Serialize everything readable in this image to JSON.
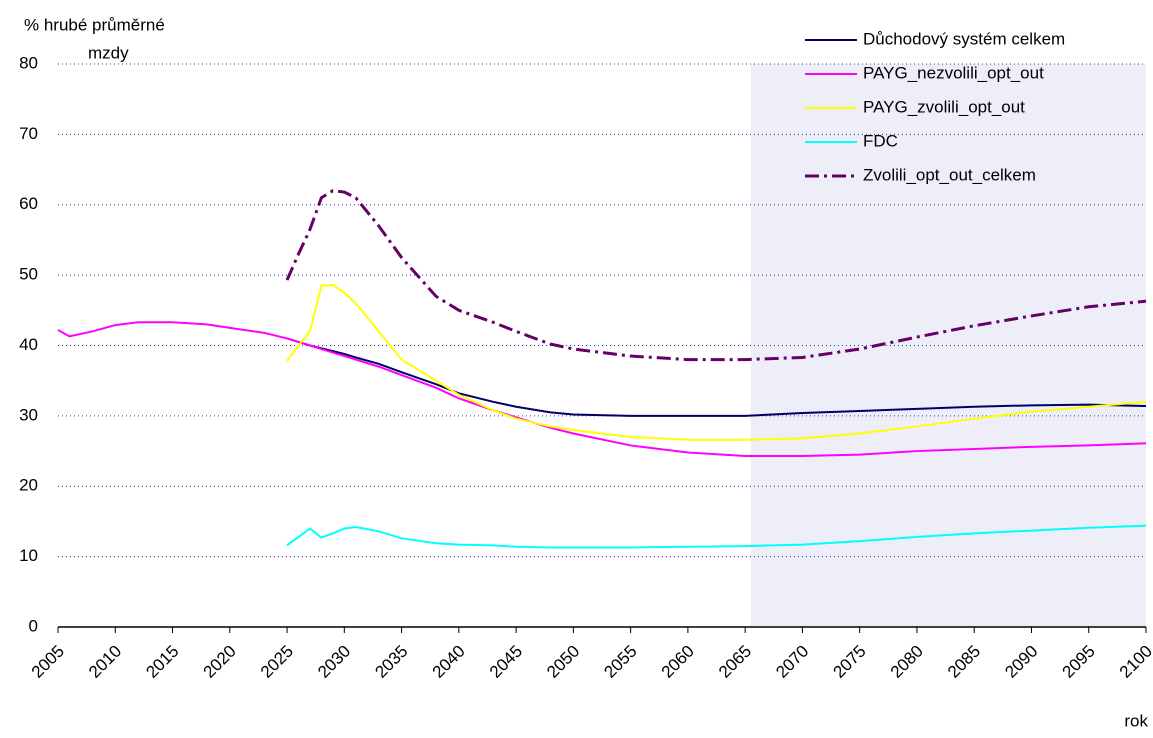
{
  "chart_data": {
    "type": "line",
    "ylabel": [
      "% hrubé průměrné",
      "mzdy"
    ],
    "xlabel": "rok",
    "x": [
      2005,
      2006,
      2008,
      2010,
      2012,
      2015,
      2018,
      2020,
      2023,
      2025,
      2026,
      2027,
      2028,
      2029,
      2030,
      2031,
      2033,
      2035,
      2038,
      2040,
      2043,
      2045,
      2048,
      2050,
      2055,
      2060,
      2065,
      2070,
      2075,
      2080,
      2085,
      2090,
      2095,
      2100
    ],
    "series": [
      {
        "name": "Důchodový systém celkem",
        "color": "#000066",
        "dash": "solid",
        "values": [
          null,
          null,
          null,
          null,
          null,
          null,
          null,
          null,
          null,
          41,
          40.5,
          40,
          39.6,
          39.2,
          38.8,
          38.3,
          37.4,
          36.2,
          34.5,
          33.2,
          32,
          31.3,
          30.5,
          30.2,
          30,
          30,
          30,
          30.4,
          30.7,
          31,
          31.3,
          31.5,
          31.6,
          31.4
        ]
      },
      {
        "name": "PAYG_nezvolili_opt_out",
        "color": "#ff00ff",
        "dash": "solid",
        "values": [
          42.2,
          41.3,
          42,
          42.9,
          43.3,
          43.3,
          43,
          42.5,
          41.8,
          41,
          40.5,
          40,
          39.5,
          39,
          38.5,
          38,
          37,
          35.8,
          34,
          32.5,
          30.8,
          29.8,
          28.3,
          27.5,
          25.8,
          24.8,
          24.3,
          24.3,
          24.5,
          25,
          25.3,
          25.6,
          25.8,
          26.1
        ]
      },
      {
        "name": "PAYG_zvolili_opt_out",
        "color": "#ffff00",
        "dash": "solid",
        "values": [
          null,
          null,
          null,
          null,
          null,
          null,
          null,
          null,
          null,
          37.8,
          40,
          42,
          48.5,
          48.6,
          47.5,
          46,
          42,
          38,
          35,
          33,
          30.8,
          29.6,
          28.5,
          28,
          27,
          26.6,
          26.6,
          26.8,
          27.5,
          28.5,
          29.6,
          30.6,
          31.3,
          32
        ]
      },
      {
        "name": "FDC",
        "color": "#00ffff",
        "dash": "solid",
        "values": [
          null,
          null,
          null,
          null,
          null,
          null,
          null,
          null,
          null,
          11.6,
          12.8,
          14,
          12.7,
          13.3,
          14,
          14.2,
          13.6,
          12.6,
          11.9,
          11.7,
          11.6,
          11.4,
          11.3,
          11.3,
          11.3,
          11.4,
          11.5,
          11.7,
          12.2,
          12.8,
          13.3,
          13.7,
          14.1,
          14.4
        ]
      },
      {
        "name": "Zvolili_opt_out_celkem",
        "color": "#660066",
        "dash": "dashdot",
        "values": [
          null,
          null,
          null,
          null,
          null,
          null,
          null,
          null,
          null,
          49.3,
          53,
          56.5,
          61,
          62,
          61.8,
          61,
          57,
          52.5,
          47,
          45,
          43.3,
          42,
          40.2,
          39.5,
          38.5,
          38,
          38,
          38.3,
          39.5,
          41.2,
          42.8,
          44.2,
          45.5,
          46.3
        ]
      }
    ],
    "xlim": [
      2005,
      2100
    ],
    "xticks": [
      2005,
      2010,
      2015,
      2020,
      2025,
      2030,
      2035,
      2040,
      2045,
      2050,
      2055,
      2060,
      2065,
      2070,
      2075,
      2080,
      2085,
      2090,
      2095,
      2100
    ],
    "ylim": [
      0,
      80
    ],
    "yticks": [
      0,
      10,
      20,
      30,
      40,
      50,
      60,
      70,
      80
    ],
    "shaded_xlim": [
      2065.5,
      2100
    ],
    "shade_color": "#eeeef9",
    "grid": true,
    "legend": "top-right"
  }
}
